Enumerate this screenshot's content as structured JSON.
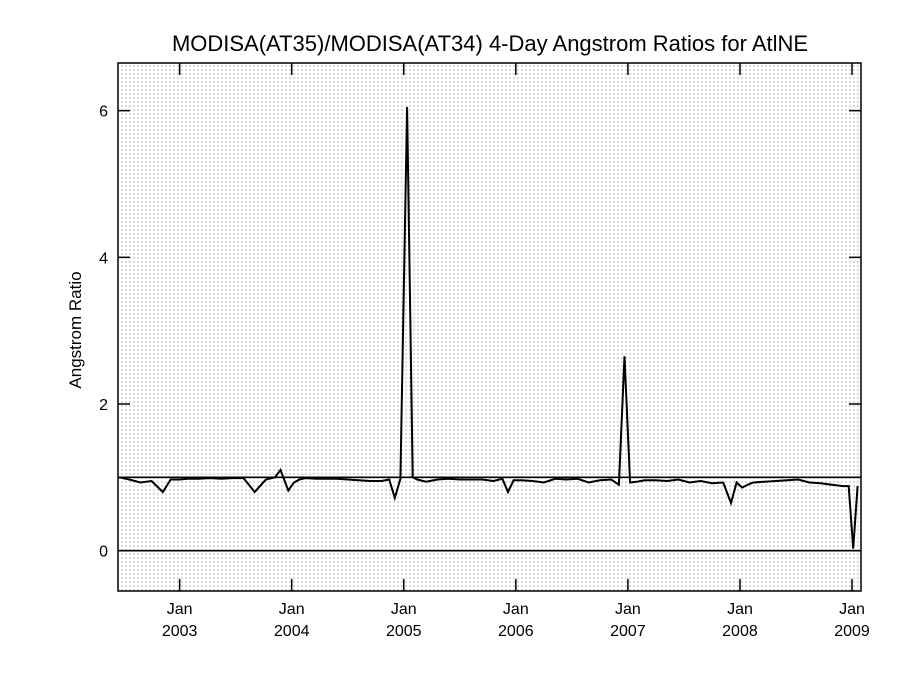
{
  "chart_data": {
    "type": "line",
    "title": "MODISA(AT35)/MODISA(AT34) 4-Day Angstrom Ratios for AtlNE",
    "ylabel": "Angstrom Ratio",
    "xlabel": "",
    "x_unit": "year",
    "xlim": [
      2002.45,
      2009.08
    ],
    "ylim": [
      -0.55,
      6.65
    ],
    "yticks": [
      0,
      2,
      4,
      6
    ],
    "ytick_labels": [
      "0",
      "2",
      "4",
      "6"
    ],
    "xticks": [
      {
        "value": 2003.0,
        "month": "Jan",
        "year": "2003"
      },
      {
        "value": 2004.0,
        "month": "Jan",
        "year": "2004"
      },
      {
        "value": 2005.0,
        "month": "Jan",
        "year": "2005"
      },
      {
        "value": 2006.0,
        "month": "Jan",
        "year": "2006"
      },
      {
        "value": 2007.0,
        "month": "Jan",
        "year": "2007"
      },
      {
        "value": 2008.0,
        "month": "Jan",
        "year": "2008"
      },
      {
        "value": 2009.0,
        "month": "Jan",
        "year": "2009"
      }
    ],
    "reference_lines": [
      1.0,
      0.0
    ],
    "grid": "dotted",
    "series": [
      {
        "values_x": [
          2002.46,
          2002.55,
          2002.65,
          2002.75,
          2002.85,
          2002.92,
          2003.0,
          2003.07,
          2003.17,
          2003.27,
          2003.37,
          2003.47,
          2003.57,
          2003.67,
          2003.77,
          2003.85,
          2003.9,
          2003.97,
          2004.02,
          2004.07,
          2004.12,
          2004.22,
          2004.3,
          2004.4,
          2004.5,
          2004.6,
          2004.7,
          2004.8,
          2004.87,
          2004.92,
          2004.97,
          2005.03,
          2005.08,
          2005.12,
          2005.2,
          2005.3,
          2005.4,
          2005.5,
          2005.6,
          2005.7,
          2005.8,
          2005.88,
          2005.93,
          2005.98,
          2006.05,
          2006.15,
          2006.25,
          2006.35,
          2006.45,
          2006.55,
          2006.65,
          2006.75,
          2006.85,
          2006.92,
          2006.97,
          2007.02,
          2007.08,
          2007.15,
          2007.25,
          2007.35,
          2007.45,
          2007.55,
          2007.65,
          2007.75,
          2007.85,
          2007.92,
          2007.97,
          2008.02,
          2008.07,
          2008.12,
          2008.22,
          2008.32,
          2008.42,
          2008.52,
          2008.62,
          2008.72,
          2008.82,
          2008.92,
          2008.97,
          2009.01,
          2009.05
        ],
        "values_y": [
          1.0,
          0.97,
          0.93,
          0.95,
          0.8,
          0.97,
          0.97,
          0.98,
          0.98,
          0.99,
          0.98,
          0.99,
          0.99,
          0.8,
          0.97,
          1.0,
          1.1,
          0.82,
          0.93,
          0.97,
          0.99,
          0.98,
          0.98,
          0.98,
          0.97,
          0.96,
          0.95,
          0.95,
          0.97,
          0.72,
          0.98,
          6.05,
          1.0,
          0.97,
          0.94,
          0.97,
          0.98,
          0.97,
          0.97,
          0.97,
          0.95,
          0.98,
          0.8,
          0.96,
          0.96,
          0.95,
          0.93,
          0.98,
          0.97,
          0.98,
          0.93,
          0.96,
          0.97,
          0.9,
          2.65,
          0.93,
          0.94,
          0.96,
          0.96,
          0.95,
          0.97,
          0.93,
          0.95,
          0.92,
          0.93,
          0.65,
          0.93,
          0.86,
          0.9,
          0.93,
          0.94,
          0.95,
          0.96,
          0.97,
          0.93,
          0.92,
          0.9,
          0.88,
          0.88,
          0.03,
          0.88
        ]
      }
    ]
  }
}
